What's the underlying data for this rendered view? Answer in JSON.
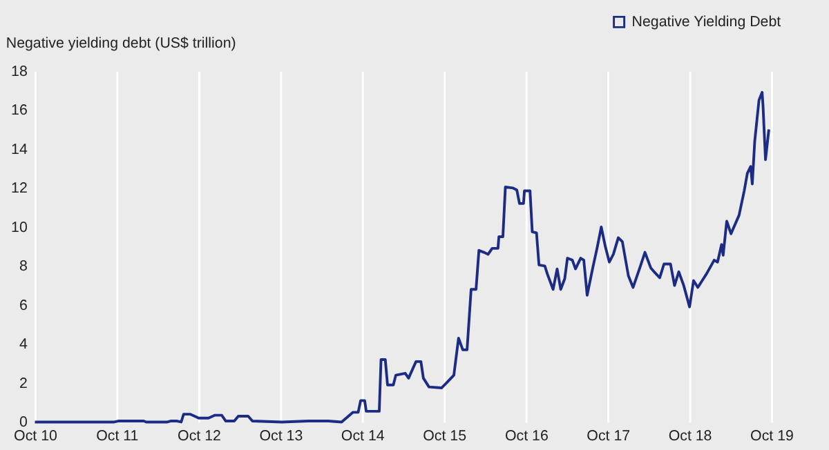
{
  "chart_data": {
    "type": "line",
    "ylabel": "Negative yielding debt (US$ trillion)",
    "xlim": [
      "2010-10-01",
      "2019-10-01"
    ],
    "xticks": [
      {
        "value": "2010-10-01",
        "label": "Oct 10"
      },
      {
        "value": "2011-10-01",
        "label": "Oct 11"
      },
      {
        "value": "2012-10-01",
        "label": "Oct 12"
      },
      {
        "value": "2013-10-01",
        "label": "Oct 13"
      },
      {
        "value": "2014-10-01",
        "label": "Oct 14"
      },
      {
        "value": "2015-10-01",
        "label": "Oct 15"
      },
      {
        "value": "2016-10-01",
        "label": "Oct 16"
      },
      {
        "value": "2017-10-01",
        "label": "Oct 17"
      },
      {
        "value": "2018-10-01",
        "label": "Oct 18"
      },
      {
        "value": "2019-10-01",
        "label": "Oct 19"
      }
    ],
    "ylim": [
      0,
      18
    ],
    "yticks": [
      0,
      2,
      4,
      6,
      8,
      10,
      12,
      14,
      16,
      18
    ],
    "grid": "x",
    "legend": "top right",
    "line_style": "solid",
    "series": [
      {
        "name": "Negative Yielding Debt",
        "color": "#1c2c84",
        "x": [
          "2010-10-01",
          "2011-09-20",
          "2011-10-08",
          "2012-01-30",
          "2012-02-10",
          "2012-05-14",
          "2012-05-29",
          "2012-06-27",
          "2012-07-15",
          "2012-07-26",
          "2012-08-25",
          "2012-09-13",
          "2012-10-01",
          "2012-11-14",
          "2012-12-13",
          "2013-01-12",
          "2013-01-30",
          "2013-03-09",
          "2013-03-27",
          "2013-05-10",
          "2013-05-29",
          "2013-10-08",
          "2014-02-03",
          "2014-05-03",
          "2014-07-01",
          "2014-08-21",
          "2014-09-13",
          "2014-09-24",
          "2014-10-12",
          "2014-10-19",
          "2014-12-16",
          "2014-12-24",
          "2015-01-12",
          "2015-01-22",
          "2015-02-17",
          "2015-02-28",
          "2015-04-11",
          "2015-04-26",
          "2015-05-29",
          "2015-06-20",
          "2015-07-01",
          "2015-07-26",
          "2015-09-20",
          "2015-10-12",
          "2015-11-14",
          "2015-12-05",
          "2015-12-24",
          "2016-01-12",
          "2016-01-30",
          "2016-02-21",
          "2016-03-05",
          "2016-03-27",
          "2016-04-15",
          "2016-05-03",
          "2016-05-29",
          "2016-06-02",
          "2016-06-20",
          "2016-07-01",
          "2016-08-03",
          "2016-08-21",
          "2016-09-02",
          "2016-09-20",
          "2016-09-24",
          "2016-10-19",
          "2016-10-29",
          "2016-11-17",
          "2016-11-28",
          "2016-12-24",
          "2017-01-04",
          "2017-01-30",
          "2017-02-17",
          "2017-03-05",
          "2017-03-23",
          "2017-04-04",
          "2017-04-26",
          "2017-05-10",
          "2017-06-02",
          "2017-06-16",
          "2017-07-01",
          "2017-07-26",
          "2017-08-14",
          "2017-09-02",
          "2017-09-20",
          "2017-10-08",
          "2017-10-26",
          "2017-11-17",
          "2017-12-05",
          "2018-01-01",
          "2018-01-22",
          "2018-02-21",
          "2018-03-16",
          "2018-04-11",
          "2018-04-26",
          "2018-05-21",
          "2018-06-09",
          "2018-07-08",
          "2018-07-26",
          "2018-08-14",
          "2018-09-05",
          "2018-10-01",
          "2018-10-19",
          "2018-11-07",
          "2018-12-16",
          "2019-01-19",
          "2019-02-03",
          "2019-02-21",
          "2019-02-28",
          "2019-03-16",
          "2019-04-04",
          "2019-05-10",
          "2019-06-02",
          "2019-06-16",
          "2019-07-01",
          "2019-07-08",
          "2019-07-19",
          "2019-08-07",
          "2019-08-21",
          "2019-08-25",
          "2019-09-05",
          "2019-09-20"
        ],
        "values": [
          0,
          0,
          0.05,
          0.05,
          0,
          0,
          0.05,
          0.05,
          0,
          0.4,
          0.4,
          0.3,
          0.2,
          0.2,
          0.35,
          0.35,
          0.05,
          0.05,
          0.3,
          0.3,
          0.05,
          0,
          0.05,
          0.05,
          0,
          0.5,
          0.5,
          1.1,
          1.1,
          0.55,
          0.55,
          3.2,
          3.2,
          1.9,
          1.9,
          2.4,
          2.5,
          2.25,
          3.1,
          3.1,
          2.25,
          1.8,
          1.75,
          2.0,
          2.4,
          4.3,
          3.7,
          3.7,
          6.8,
          6.8,
          8.8,
          8.7,
          8.6,
          8.9,
          8.9,
          9.5,
          9.5,
          12.05,
          12.0,
          11.9,
          11.2,
          11.2,
          11.85,
          11.85,
          9.75,
          9.7,
          8.05,
          8.0,
          7.6,
          6.8,
          7.85,
          6.8,
          7.35,
          8.4,
          8.3,
          7.85,
          8.4,
          8.3,
          6.5,
          7.9,
          8.9,
          10.0,
          9.0,
          8.2,
          8.6,
          9.45,
          9.25,
          7.5,
          6.9,
          7.9,
          8.7,
          7.9,
          7.7,
          7.4,
          8.1,
          8.1,
          7.0,
          7.7,
          7.0,
          5.9,
          7.25,
          6.9,
          7.6,
          8.3,
          8.2,
          9.1,
          8.55,
          10.3,
          9.65,
          10.6,
          11.85,
          12.75,
          13.1,
          12.2,
          14.4,
          16.5,
          16.9,
          16.2,
          13.45,
          15.0
        ]
      }
    ]
  }
}
